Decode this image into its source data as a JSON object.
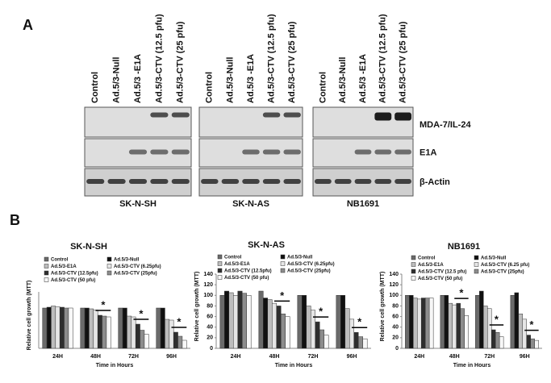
{
  "panel_a": {
    "label": "A",
    "lanes": [
      "Control",
      "Ad.5/3-Null",
      "Ad.5/3 -E1A",
      "Ad.5/3-CTV (12.5 pfu)",
      "Ad.5/3-CTV (25 pfu)"
    ],
    "cell_lines": [
      "SK-N-SH",
      "SK-N-AS",
      "NB1691"
    ],
    "rows": [
      "MDA-7/IL-24",
      "E1A",
      "β-Actin"
    ]
  },
  "panel_b_label": "B",
  "chart_data": [
    {
      "type": "bar",
      "title": "SK-N-SH",
      "x_label": "Time in Hours",
      "y_label": "Relative cell growth (MTT)",
      "categories": [
        "24H",
        "48H",
        "72H",
        "96H"
      ],
      "ylim": [
        0,
        140
      ],
      "series": [
        {
          "name": "Control",
          "color": "#6a6a6a",
          "values": [
            100,
            100,
            100,
            100
          ]
        },
        {
          "name": "Ad.5/3-Null",
          "color": "#111111",
          "values": [
            102,
            100,
            100,
            100
          ]
        },
        {
          "name": "Ad.5/3-E1A",
          "color": "#bdbdbd",
          "values": [
            105,
            98,
            80,
            72
          ]
        },
        {
          "name": "Ad.5/3-CTV (6.25pfu)",
          "color": "#e6e6e6",
          "values": [
            103,
            95,
            78,
            70
          ]
        },
        {
          "name": "Ad.5/3-CTV (12.5pfu)",
          "color": "#2e2e2e",
          "values": [
            102,
            82,
            60,
            40
          ]
        },
        {
          "name": "Ad.5/3-CTV (25pfu)",
          "color": "#8c8c8c",
          "values": [
            100,
            80,
            45,
            30
          ]
        },
        {
          "name": "Ad.5/3-CTV (50 pfu)",
          "color": "#f7f7f7",
          "values": [
            100,
            78,
            35,
            20
          ]
        }
      ],
      "annotations": [
        "*",
        "*",
        "*"
      ]
    },
    {
      "type": "bar",
      "title": "SK-N-AS",
      "x_label": "Time in Hours",
      "y_label": "Relative cell growth (MTT)",
      "categories": [
        "24H",
        "48H",
        "72H",
        "96H"
      ],
      "ylim": [
        0,
        140
      ],
      "yticks": [
        0,
        20,
        40,
        60,
        80,
        100,
        120,
        140
      ],
      "series": [
        {
          "name": "Control",
          "color": "#6a6a6a",
          "values": [
            100,
            108,
            100,
            100
          ]
        },
        {
          "name": "Ad.5/3-Null",
          "color": "#111111",
          "values": [
            108,
            95,
            100,
            100
          ]
        },
        {
          "name": "Ad.5/3-E1A",
          "color": "#bdbdbd",
          "values": [
            105,
            92,
            80,
            75
          ]
        },
        {
          "name": "Ad.5/3-CTV (6.25pfu)",
          "color": "#e6e6e6",
          "values": [
            100,
            85,
            72,
            55
          ]
        },
        {
          "name": "Ad.5/3-CTV (12.5pfu)",
          "color": "#2e2e2e",
          "values": [
            108,
            80,
            50,
            30
          ]
        },
        {
          "name": "Ad.5/3-CTV (25pfu)",
          "color": "#8c8c8c",
          "values": [
            104,
            65,
            35,
            22
          ]
        },
        {
          "name": "Ad.5/3-CTV (50 pfu)",
          "color": "#f7f7f7",
          "values": [
            100,
            60,
            25,
            18
          ]
        }
      ],
      "annotations": [
        "*",
        "*",
        "*"
      ]
    },
    {
      "type": "bar",
      "title": "NB1691",
      "x_label": "Time in Hours",
      "y_label": "Relative cell growth (MTT)",
      "categories": [
        "24H",
        "48H",
        "72H",
        "96H"
      ],
      "ylim": [
        0,
        140
      ],
      "yticks": [
        0,
        20,
        40,
        60,
        80,
        100,
        120,
        140
      ],
      "series": [
        {
          "name": "Control",
          "color": "#6a6a6a",
          "values": [
            100,
            100,
            100,
            100
          ]
        },
        {
          "name": "Ad.5/3-Null",
          "color": "#111111",
          "values": [
            100,
            100,
            108,
            105
          ]
        },
        {
          "name": "Ad.5/3-E1A",
          "color": "#bdbdbd",
          "values": [
            95,
            85,
            80,
            65
          ]
        },
        {
          "name": "Ad.5/3-CTV (6.25 pfu)",
          "color": "#e6e6e6",
          "values": [
            93,
            82,
            75,
            55
          ]
        },
        {
          "name": "Ad.5/3-CTV (12.5 pfu)",
          "color": "#2e2e2e",
          "values": [
            95,
            85,
            35,
            25
          ]
        },
        {
          "name": "Ad.5/3-CTV (25pfu)",
          "color": "#8c8c8c",
          "values": [
            95,
            75,
            30,
            18
          ]
        },
        {
          "name": "Ad.5/3-CTV (50 pfu)",
          "color": "#f7f7f7",
          "values": [
            95,
            62,
            22,
            15
          ]
        }
      ],
      "annotations": [
        "*",
        "*",
        "*"
      ]
    }
  ]
}
